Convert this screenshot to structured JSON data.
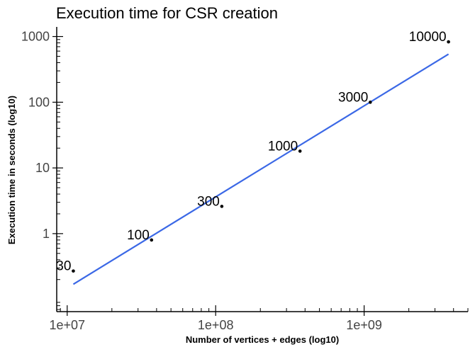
{
  "chart_data": {
    "type": "scatter",
    "title": "Execution time for CSR creation",
    "xlabel": "Number of vertices + edges (log10)",
    "ylabel": "Execution time in seconds (log10)",
    "x_scale": "log",
    "y_scale": "log",
    "xlim": [
      8500000,
      5000000000
    ],
    "ylim": [
      0.065,
      1400
    ],
    "x_ticks": [
      {
        "value": 10000000,
        "label": "1e+07"
      },
      {
        "value": 100000000,
        "label": "1e+08"
      },
      {
        "value": 1000000000,
        "label": "1e+09"
      }
    ],
    "y_ticks": [
      {
        "value": 1,
        "label": "1"
      },
      {
        "value": 10,
        "label": "10"
      },
      {
        "value": 100,
        "label": "100"
      },
      {
        "value": 1000,
        "label": "1000"
      }
    ],
    "points": [
      {
        "label": "30",
        "x": 11000000,
        "y": 0.27
      },
      {
        "label": "100",
        "x": 37000000,
        "y": 0.8
      },
      {
        "label": "300",
        "x": 110000000,
        "y": 2.6
      },
      {
        "label": "1000",
        "x": 370000000,
        "y": 18
      },
      {
        "label": "3000",
        "x": 1100000000,
        "y": 100
      },
      {
        "label": "10000",
        "x": 3700000000,
        "y": 830
      }
    ],
    "trendline": {
      "x": [
        11000000,
        3700000000
      ],
      "y": [
        0.17,
        540
      ]
    },
    "grid": false,
    "legend": "none",
    "colors": {
      "points": "#000000",
      "trendline": "#3b68e6"
    }
  }
}
